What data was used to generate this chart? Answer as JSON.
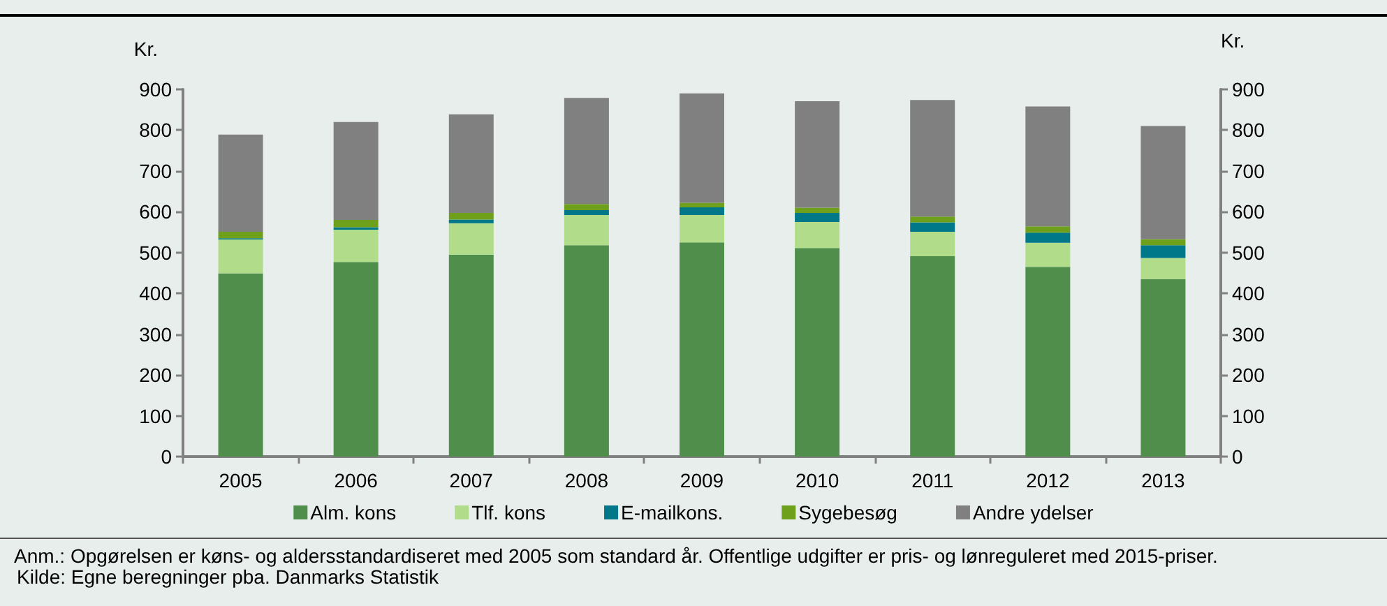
{
  "chart_data": {
    "type": "bar",
    "stacked": true,
    "categories": [
      "2005",
      "2006",
      "2007",
      "2008",
      "2009",
      "2010",
      "2011",
      "2012",
      "2013"
    ],
    "series": [
      {
        "name": "Alm. kons",
        "color": "#4f8f4b",
        "values": [
          449,
          477,
          495,
          518,
          525,
          511,
          491,
          465,
          435
        ]
      },
      {
        "name": "Tlf. kons",
        "color": "#b1dd8a",
        "values": [
          83,
          79,
          77,
          74,
          67,
          64,
          60,
          59,
          52
        ]
      },
      {
        "name": "E-mailkons.",
        "color": "#00788a",
        "values": [
          3,
          6,
          9,
          12,
          19,
          22,
          23,
          25,
          31
        ]
      },
      {
        "name": "Sygebesøg",
        "color": "#6fa01c",
        "values": [
          16,
          18,
          16,
          15,
          11,
          13,
          14,
          15,
          15
        ]
      },
      {
        "name": "Andre ydelser",
        "color": "#808080",
        "values": [
          238,
          240,
          242,
          260,
          268,
          261,
          286,
          294,
          277
        ]
      }
    ],
    "ylabel": "Kr.",
    "y2label": "Kr.",
    "ylim": [
      0,
      900
    ],
    "yticks": [
      0,
      100,
      200,
      300,
      400,
      500,
      600,
      700,
      800,
      900
    ],
    "y2lim": [
      0,
      900
    ],
    "y2ticks": [
      0,
      100,
      200,
      300,
      400,
      500,
      600,
      700,
      800,
      900
    ],
    "grid": false,
    "legend": "bottom",
    "annotations": [
      "Anm.: Opgørelsen er køns- og aldersstandardiseret med 2005 som standard år. Offentlige udgifter er pris- og lønreguleret med 2015-priser.",
      "Kilde: Egne beregninger pba. Danmarks Statistik"
    ]
  }
}
